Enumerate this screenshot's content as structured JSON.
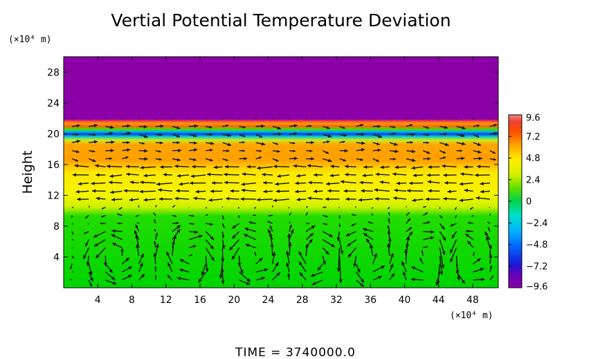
{
  "chart_data": {
    "type": "heatmap",
    "title": "Vertial Potential Temperature Deviation",
    "xlabel": "",
    "ylabel": "Height",
    "x_unit_label": "(×10⁴ m)",
    "y_unit_label": "(×10⁴ m)",
    "xlim": [
      0,
      51
    ],
    "ylim": [
      0,
      30
    ],
    "x_ticks": [
      "4",
      "8",
      "12",
      "16",
      "20",
      "24",
      "28",
      "32",
      "36",
      "40",
      "44",
      "48"
    ],
    "y_ticks": [
      "4",
      "8",
      "12",
      "16",
      "20",
      "24",
      "28"
    ],
    "colorbar": {
      "ticks": [
        "9.6",
        "7.2",
        "4.8",
        "2.4",
        "0",
        "−2.4",
        "−4.8",
        "−7.2",
        "−9.6"
      ],
      "range": [
        -9.6,
        9.6
      ]
    },
    "layers": [
      {
        "height_range": [
          0,
          10
        ],
        "value": 0.4
      },
      {
        "height_range": [
          10,
          16
        ],
        "value": 3.0
      },
      {
        "height_range": [
          16,
          19
        ],
        "value": 4.9
      },
      {
        "height_range": [
          19,
          20
        ],
        "value": -1.5
      },
      {
        "height_range": [
          20,
          20.7
        ],
        "value": -5.5
      },
      {
        "height_range": [
          20.7,
          21.5
        ],
        "value": 2.0
      },
      {
        "height_range": [
          21.5,
          22
        ],
        "value": 7.0
      },
      {
        "height_range": [
          22,
          30
        ],
        "value": -9.6
      }
    ],
    "vectors": "wind arrows; bottom layer (0-10) shows convective circulation cells, layer 12-16 shows westward flow",
    "footer": "TIME = 3740000.0"
  }
}
